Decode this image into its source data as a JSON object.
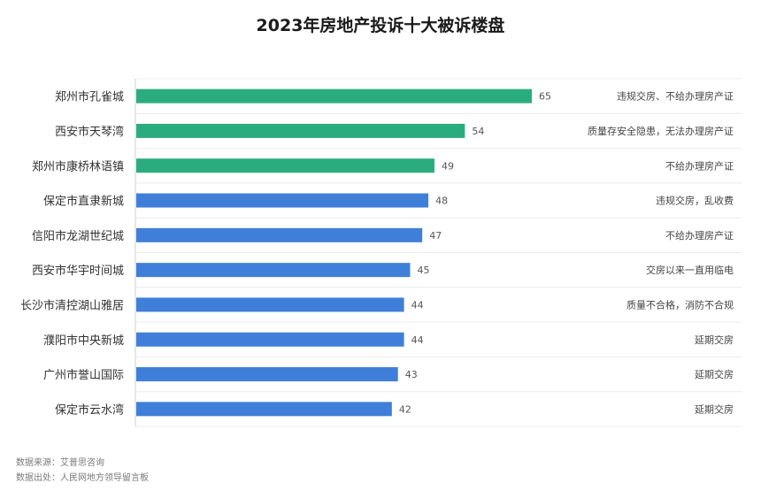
{
  "chart_data": {
    "type": "bar",
    "orientation": "horizontal",
    "title": "2023年房地产投诉十大被诉楼盘",
    "categories": [
      "郑州市孔雀城",
      "西安市天琴湾",
      "郑州市康桥林语镇",
      "保定市直隶新城",
      "信阳市龙湖世纪城",
      "西安市华宇时间城",
      "长沙市清控湖山雅居",
      "濮阳市中央新城",
      "广州市誉山国际",
      "保定市云水湾"
    ],
    "values": [
      65,
      54,
      49,
      48,
      47,
      45,
      44,
      44,
      43,
      42
    ],
    "complaint_reasons": [
      "违规交房、不给办理房产证",
      "质量存安全隐患，无法办理房产证",
      "不给办理房产证",
      "违规交房，乱收费",
      "不给办理房产证",
      "交房以来一直用临电",
      "质量不合格，消防不合规",
      "延期交房",
      "延期交房",
      "延期交房"
    ],
    "highlight_top": 3,
    "xlim": [
      0,
      65
    ],
    "grid": true,
    "colors": {
      "highlight": "#2bac7f",
      "normal": "#3f7fd9"
    }
  },
  "footer": {
    "source_1": "数据来源：艾普思咨询",
    "source_2": "数据出处：人民网地方领导留言板"
  }
}
